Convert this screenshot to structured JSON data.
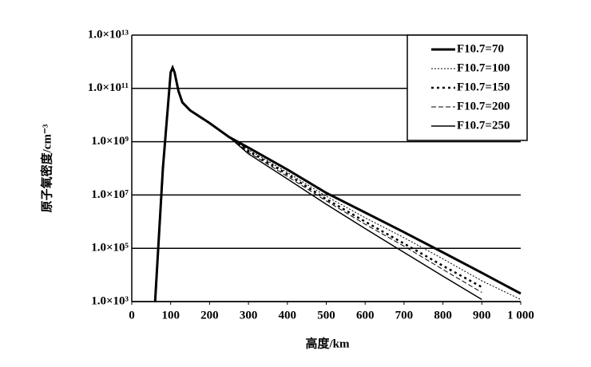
{
  "chart_data": {
    "type": "line",
    "xlabel": "高度/km",
    "ylabel": "原子氧密度/cm⁻³",
    "log_y": true,
    "grid": true,
    "legend": "top-right",
    "x": [
      60,
      80,
      100,
      105,
      110,
      120,
      130,
      150,
      200,
      250,
      300,
      400,
      500,
      600,
      700,
      800,
      900,
      1000
    ],
    "series": [
      {
        "name": "F10.7=70",
        "color": "#000000",
        "width": 3,
        "dash": "",
        "values": [
          1000.0,
          100000000.0,
          400000000000.0,
          600000000000.0,
          400000000000.0,
          80000000000.0,
          30000000000.0,
          15000000000.0,
          5000000000.0,
          1500000000.0,
          600000000.0,
          90000000.0,
          12000000.0,
          2200000.0,
          400000.0,
          70000.0,
          12000.0,
          2000.0
        ]
      },
      {
        "name": "F10.7=100",
        "color": "#000000",
        "width": 1,
        "dash": "2 2",
        "values": [
          1000.0,
          100000000.0,
          400000000000.0,
          600000000000.0,
          400000000000.0,
          80000000000.0,
          30000000000.0,
          15000000000.0,
          5000000000.0,
          1500000000.0,
          500000000.0,
          70000000.0,
          9000000.0,
          1400000.0,
          250000.0,
          40000.0,
          6000.0,
          1200.0
        ]
      },
      {
        "name": "F10.7=150",
        "color": "#000000",
        "width": 2.5,
        "dash": "3 4",
        "values": [
          1000.0,
          100000000.0,
          400000000000.0,
          600000000000.0,
          400000000000.0,
          80000000000.0,
          30000000000.0,
          15000000000.0,
          5000000000.0,
          1500000000.0,
          450000000.0,
          60000000.0,
          7000000.0,
          1000000.0,
          150000.0,
          22000.0,
          3500.0,
          null
        ]
      },
      {
        "name": "F10.7=200",
        "color": "#000000",
        "width": 1,
        "dash": "6 3",
        "values": [
          1000.0,
          100000000.0,
          400000000000.0,
          600000000000.0,
          400000000000.0,
          80000000000.0,
          30000000000.0,
          15000000000.0,
          5000000000.0,
          1500000000.0,
          400000000.0,
          50000000.0,
          6000000.0,
          800000.0,
          120000.0,
          16000.0,
          2200.0,
          null
        ]
      },
      {
        "name": "F10.7=250",
        "color": "#000000",
        "width": 1.5,
        "dash": "",
        "values": [
          1000.0,
          100000000.0,
          400000000000.0,
          600000000000.0,
          400000000000.0,
          80000000000.0,
          30000000000.0,
          15000000000.0,
          5000000000.0,
          1500000000.0,
          350000000.0,
          40000000.0,
          4500000.0,
          550000.0,
          70000.0,
          9000.0,
          1200.0,
          null
        ]
      }
    ],
    "xlim": [
      0,
      1000
    ],
    "xticks": [
      0,
      100,
      200,
      300,
      400,
      500,
      600,
      700,
      800,
      900,
      {
        "value": 1000,
        "label": "1 000"
      }
    ],
    "ylim": [
      1000.0,
      10000000000000.0
    ],
    "yticks": [
      {
        "value": 1000.0,
        "label": "1.0×10³"
      },
      {
        "value": 100000.0,
        "label": "1.0×10⁵"
      },
      {
        "value": 10000000.0,
        "label": "1.0×10⁷"
      },
      {
        "value": 1000000000.0,
        "label": "1.0×10⁹"
      },
      {
        "value": 100000000000.0,
        "label": "1.0×10¹¹"
      },
      {
        "value": 10000000000000.0,
        "label": "1.0×10¹³"
      }
    ]
  }
}
